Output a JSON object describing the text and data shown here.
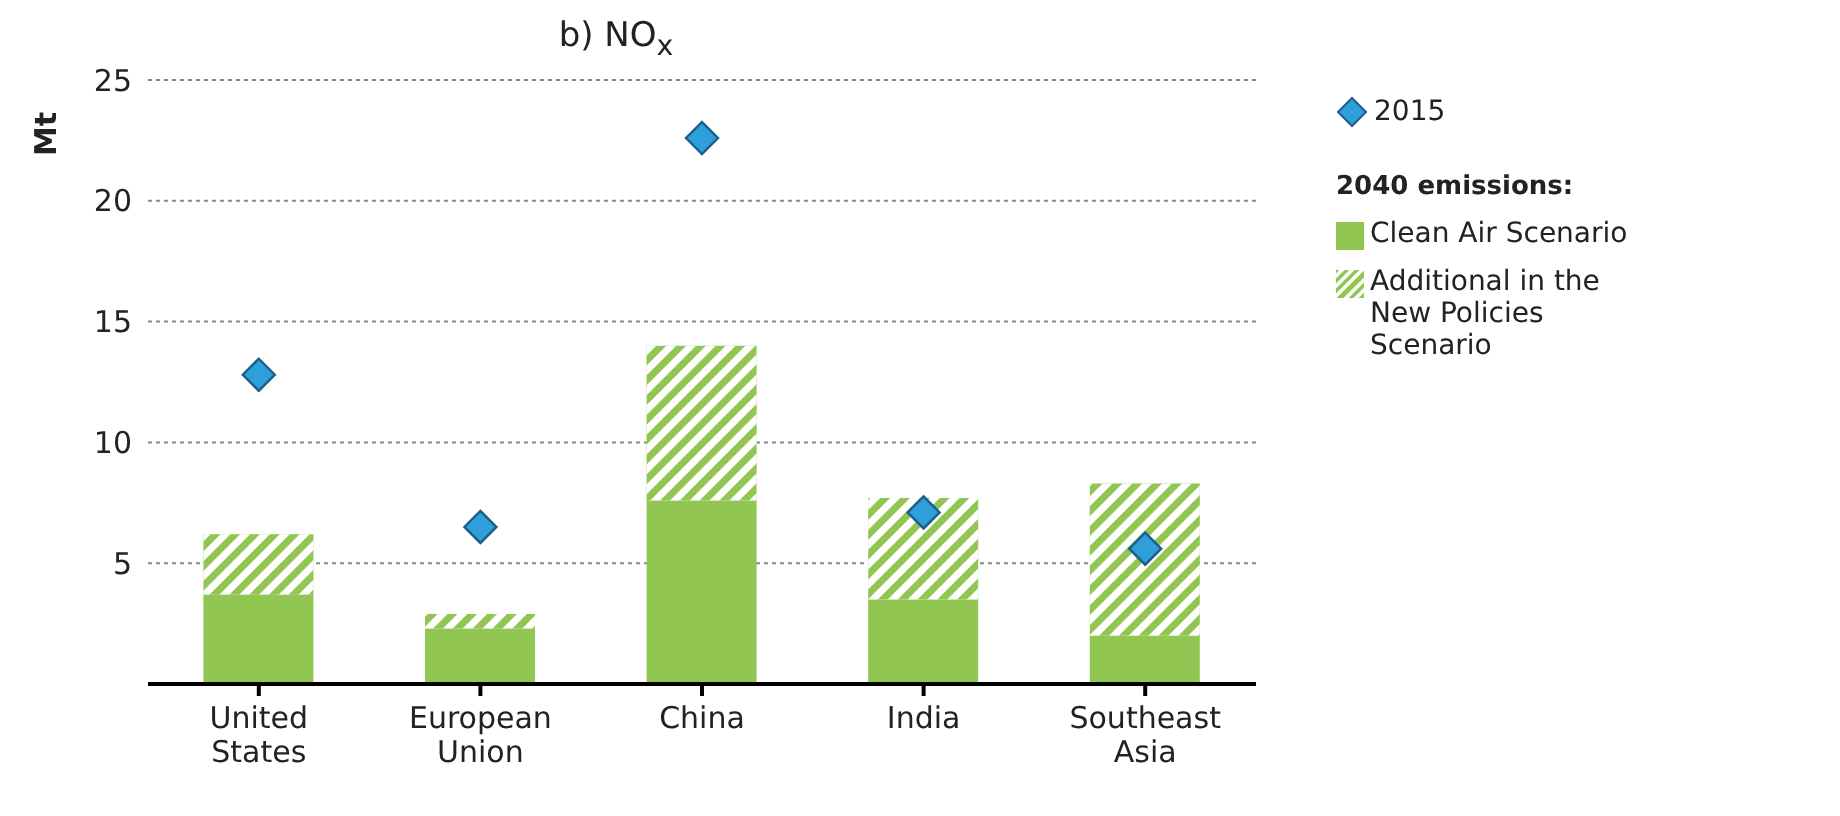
{
  "chart_data": {
    "type": "bar",
    "title": "b)  NO$_{x}$",
    "ylabel": "Mt",
    "legend_title": "2040 emissions:",
    "categories": [
      "United States",
      "European Union",
      "China",
      "India",
      "Southeast Asia"
    ],
    "stacked": true,
    "ylim": [
      0,
      25
    ],
    "yticks": [
      5,
      10,
      15,
      20,
      25
    ],
    "grid": "y",
    "legend": "top right",
    "series": [
      {
        "name": "2015",
        "type": "scatter",
        "marker": "diamond",
        "color": "#2e9fd8",
        "values": [
          12.8,
          6.5,
          22.6,
          7.1,
          5.6
        ]
      },
      {
        "name": "Clean Air Scenario",
        "color": "#92c653",
        "values": [
          3.7,
          2.3,
          7.6,
          3.5,
          2.0
        ]
      },
      {
        "name": "Additional in the New Policies Scenario",
        "color": "#92c653",
        "values": [
          2.5,
          0.6,
          6.4,
          4.2,
          6.3
        ]
      }
    ]
  }
}
